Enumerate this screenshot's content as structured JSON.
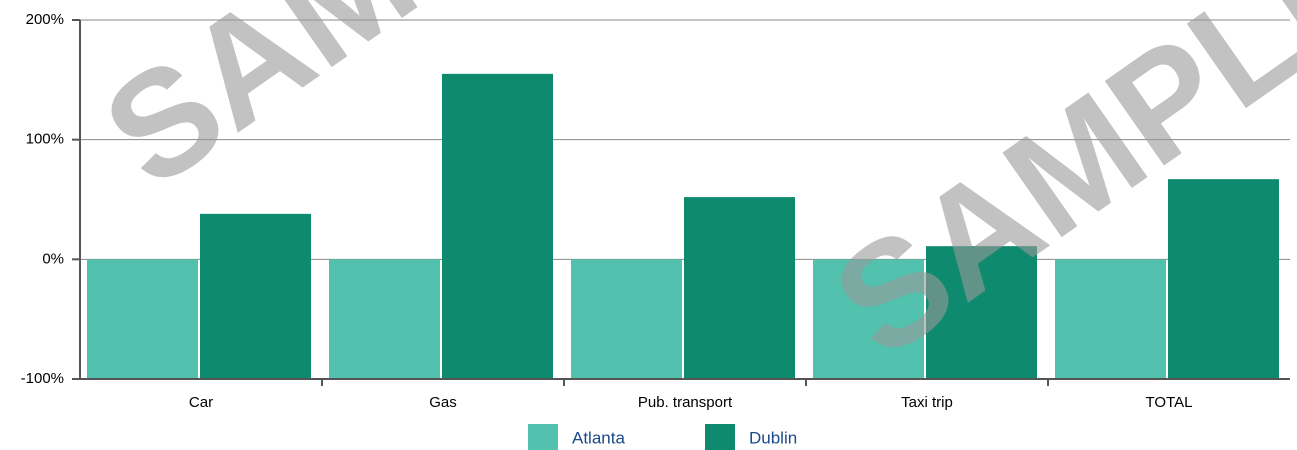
{
  "chart_data": {
    "type": "bar",
    "categories": [
      "Car",
      "Gas",
      "Pub. transport",
      "Taxi trip",
      "TOTAL"
    ],
    "series": [
      {
        "name": "Atlanta",
        "color": "#52c1ad",
        "values": [
          0,
          0,
          0,
          0,
          0
        ]
      },
      {
        "name": "Dublin",
        "color": "#0e8a6e",
        "values": [
          38,
          155,
          52,
          11,
          67
        ]
      }
    ],
    "ylim": [
      -100,
      200
    ],
    "yticks": [
      {
        "value": -100,
        "label": "-100%"
      },
      {
        "value": 0,
        "label": "0%"
      },
      {
        "value": 100,
        "label": "100%"
      },
      {
        "value": 200,
        "label": "200%"
      }
    ],
    "grid": true,
    "legend": "bottom",
    "watermark": "SAMPLE"
  }
}
